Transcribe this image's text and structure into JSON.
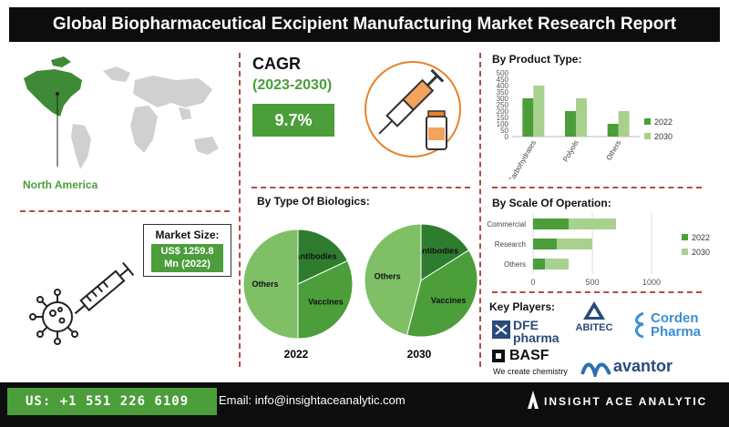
{
  "header": {
    "title": "Global Biopharmaceutical Excipient Manufacturing Market Research Report"
  },
  "region": {
    "label": "North America"
  },
  "market_size": {
    "title": "Market Size:",
    "value_line1": "US$ 1259.8",
    "value_line2": "Mn (2022)"
  },
  "cagr": {
    "title": "CAGR",
    "period": "(2023-2030)",
    "value": "9.7%"
  },
  "biologics": {
    "title": "By Type Of Biologics:",
    "year1": "2022",
    "year2": "2030"
  },
  "product_type": {
    "title": "By Product Type:"
  },
  "scale": {
    "title": "By  Scale Of Operation:"
  },
  "key_players": {
    "title": "Key Players:",
    "logos": [
      "DFE pharma",
      "ABITEC",
      "Corden Pharma",
      "BASF",
      "We create chemistry",
      "avantor"
    ]
  },
  "footer": {
    "phone": "US: +1 551 226 6109",
    "email": "Email: info@insightaceanalytic.com",
    "brand": "INSIGHT ACE ANALYTIC"
  },
  "colors": {
    "accent": "#4b9e3a",
    "light_green": "#a9d18e",
    "dark": "#0d0d0d",
    "separator": "#b34a4a"
  },
  "icons": [
    "world-map-icon",
    "syringe-virus-icon",
    "syringe-vial-icon",
    "insight-ace-logo-icon"
  ],
  "chart_data": [
    {
      "type": "bar",
      "title": "By Product Type:",
      "categories": [
        "Carbohydrates",
        "Polyols",
        "Others"
      ],
      "series": [
        {
          "name": "2022",
          "values": [
            300,
            200,
            100
          ],
          "color": "#4b9e3a"
        },
        {
          "name": "2030",
          "values": [
            400,
            300,
            200
          ],
          "color": "#a9d18e"
        }
      ],
      "ylim": [
        0,
        500
      ],
      "yticks": [
        0,
        50,
        100,
        150,
        200,
        250,
        300,
        350,
        400,
        450,
        500
      ],
      "legend": "right"
    },
    {
      "type": "bar",
      "orientation": "horizontal",
      "stacked": true,
      "title": "By  Scale Of Operation:",
      "categories": [
        "Commercial",
        "Research",
        "Others"
      ],
      "series": [
        {
          "name": "2022",
          "values": [
            300,
            200,
            100
          ],
          "color": "#4b9e3a"
        },
        {
          "name": "2030",
          "values": [
            400,
            300,
            200
          ],
          "color": "#a9d18e"
        }
      ],
      "xlim": [
        0,
        1000
      ],
      "xticks": [
        0,
        500,
        1000
      ],
      "legend": "right"
    },
    {
      "type": "pie",
      "title": "2022",
      "labels": [
        "Antibodies",
        "Vaccines",
        "Others"
      ],
      "values": [
        18,
        32,
        50
      ],
      "colors": [
        "#2e7d2e",
        "#4b9e3a",
        "#7fbf66"
      ]
    },
    {
      "type": "pie",
      "title": "2030",
      "labels": [
        "Antibodies",
        "Vaccines",
        "Others"
      ],
      "values": [
        16,
        38,
        46
      ],
      "colors": [
        "#2e7d2e",
        "#4b9e3a",
        "#7fbf66"
      ]
    }
  ]
}
